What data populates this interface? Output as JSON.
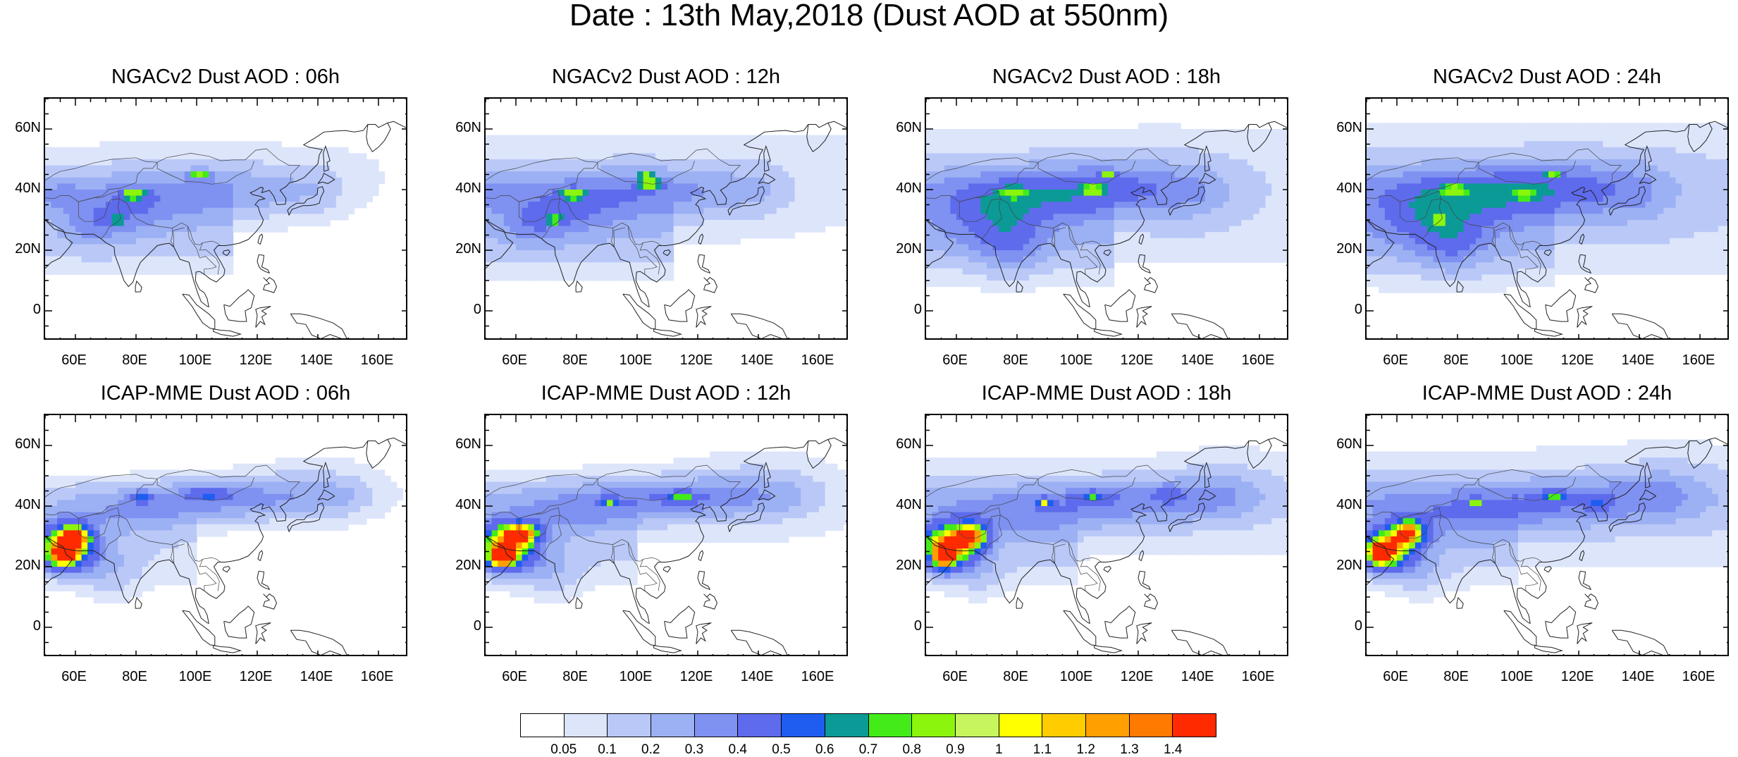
{
  "title": "Date : 13th May,2018 (Dust AOD at 550nm)",
  "panels": [
    {
      "title": "NGACv2 Dust AOD : 06h",
      "model": "NGACv2",
      "lead": "06h"
    },
    {
      "title": "NGACv2 Dust AOD : 12h",
      "model": "NGACv2",
      "lead": "12h"
    },
    {
      "title": "NGACv2 Dust AOD : 18h",
      "model": "NGACv2",
      "lead": "18h"
    },
    {
      "title": "NGACv2 Dust AOD : 24h",
      "model": "NGACv2",
      "lead": "24h"
    },
    {
      "title": "ICAP-MME Dust AOD : 06h",
      "model": "ICAP-MME",
      "lead": "06h"
    },
    {
      "title": "ICAP-MME Dust AOD : 12h",
      "model": "ICAP-MME",
      "lead": "12h"
    },
    {
      "title": "ICAP-MME Dust AOD : 18h",
      "model": "ICAP-MME",
      "lead": "18h"
    },
    {
      "title": "ICAP-MME Dust AOD : 24h",
      "model": "ICAP-MME",
      "lead": "24h"
    }
  ],
  "axes": {
    "lat_labels": [
      "60N",
      "40N",
      "20N",
      "0"
    ],
    "lon_labels": [
      "60E",
      "80E",
      "100E",
      "120E",
      "140E",
      "160E"
    ]
  },
  "colorbar": {
    "labels": [
      "0.05",
      "0.1",
      "0.2",
      "0.3",
      "0.4",
      "0.5",
      "0.6",
      "0.7",
      "0.8",
      "0.9",
      "1",
      "1.1",
      "1.2",
      "1.3",
      "1.4"
    ],
    "colors": [
      "#ffffff",
      "#dde5fb",
      "#b9c8f7",
      "#9cb0f4",
      "#7f91f1",
      "#5e6bec",
      "#1f5df1",
      "#0b9a96",
      "#43ec19",
      "#8cf50d",
      "#c6f55e",
      "#ffff00",
      "#ffcc00",
      "#ffa000",
      "#ff7a00",
      "#ff2a00"
    ]
  }
}
